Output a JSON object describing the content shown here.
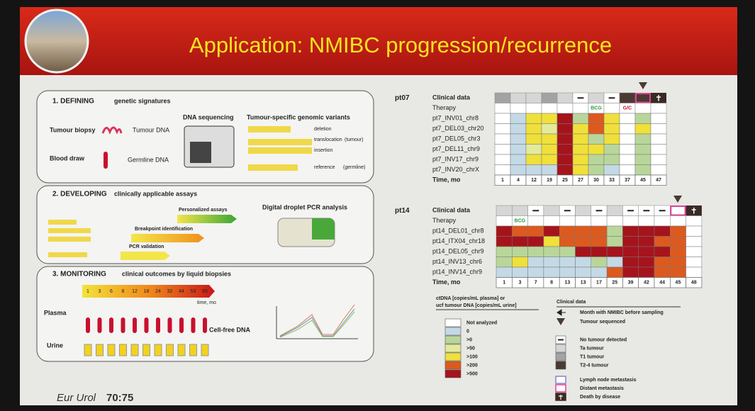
{
  "header": {
    "title": "Application: NMIBC progression/recurrence"
  },
  "citation": {
    "journal": "Eur Urol",
    "volume": "70:75"
  },
  "step1": {
    "heading": "1. DEFINING",
    "subheading": "genetic signatures",
    "tumour_biopsy": "Tumour biopsy",
    "tumour_dna": "Tumour DNA",
    "blood_draw": "Blood draw",
    "germline_dna": "Germline DNA",
    "sequencing": "DNA sequencing",
    "variants": "Tumour-specific genomic variants",
    "variant_types": [
      "deletion",
      "translocation",
      "insertion",
      "reference"
    ],
    "tumour": "(tumour)",
    "germline": "(germline)"
  },
  "step2": {
    "heading": "2. DEVELOPING",
    "subheading": "clinically applicable assays",
    "personalized": "Personalized assays",
    "breakpoint": "Breakpoint identification",
    "pcr": "PCR validation",
    "ddpcr": "Digital droplet PCR analysis"
  },
  "step3": {
    "heading": "3. MONITORING",
    "subheading": "clinical outcomes by liquid biopsies",
    "timeline": [
      1,
      3,
      6,
      8,
      12,
      18,
      24,
      32,
      44,
      53,
      65
    ],
    "time_label": "time, mo",
    "plasma": "Plasma",
    "urine": "Urine",
    "cfdna": "Cell-free DNA"
  },
  "pt07": {
    "patient": "pt07",
    "clinical_label": "Clinical data",
    "therapy_label": "Therapy",
    "time_label": "Time, mo",
    "times": [
      1,
      4,
      12,
      19,
      25,
      27,
      30,
      33,
      37,
      45,
      47
    ],
    "clinical": [
      "T1 tumour",
      "Ta tumour",
      "Ta tumour",
      "T1 tumour",
      "Ta tumour",
      "No tumour detected",
      "Ta tumour",
      "No tumour detected",
      "T2-4 tumour",
      "Distant metastasis",
      "Death by disease"
    ],
    "therapy": [
      null,
      null,
      null,
      null,
      null,
      null,
      "BCG",
      null,
      "G/C",
      null,
      null
    ],
    "rows": [
      {
        "name": "pt7_INV01_chr8",
        "levels": [
          "Not analyzed",
          "0",
          ">100",
          ">100",
          ">500",
          ">0",
          ">200",
          ">100",
          "Not analyzed",
          ">0",
          "Not analyzed"
        ]
      },
      {
        "name": "pt7_DEL03_chr20",
        "levels": [
          "Not analyzed",
          "0",
          ">100",
          ">50",
          ">500",
          ">100",
          ">200",
          ">100",
          "Not analyzed",
          ">100",
          "Not analyzed"
        ]
      },
      {
        "name": "pt7_DEL05_chr3",
        "levels": [
          "Not analyzed",
          "0",
          ">100",
          ">100",
          ">500",
          ">100",
          ">0",
          ">100",
          "Not analyzed",
          ">0",
          "Not analyzed"
        ]
      },
      {
        "name": "pt7_DEL11_chr9",
        "levels": [
          "Not analyzed",
          "0",
          ">50",
          ">100",
          ">500",
          ">100",
          ">100",
          ">0",
          "Not analyzed",
          ">0",
          "Not analyzed"
        ]
      },
      {
        "name": "pt7_INV17_chr9",
        "levels": [
          "Not analyzed",
          "0",
          ">100",
          ">100",
          ">500",
          ">100",
          ">0",
          ">0",
          "Not analyzed",
          ">0",
          "Not analyzed"
        ]
      },
      {
        "name": "pt7_INV20_chrX",
        "levels": [
          "Not analyzed",
          "0",
          "0",
          "0",
          ">500",
          ">100",
          ">0",
          "0",
          "Not analyzed",
          ">0",
          "Not analyzed"
        ]
      }
    ]
  },
  "pt14": {
    "patient": "pt14",
    "clinical_label": "Clinical data",
    "therapy_label": "Therapy",
    "time_label": "Time, mo",
    "times": [
      1,
      3,
      7,
      8,
      13,
      13,
      17,
      25,
      39,
      42,
      44,
      45,
      48
    ],
    "clinical": [
      "Ta tumour",
      "Ta tumour",
      "No tumour detected",
      "Ta tumour",
      "No tumour detected",
      "Ta tumour",
      "No tumour detected",
      "Ta tumour",
      "No tumour detected",
      "No tumour detected",
      "No tumour detected",
      "Distant metastasis",
      "Death by disease"
    ],
    "therapy": [
      null,
      "BCG",
      null,
      null,
      null,
      null,
      null,
      null,
      null,
      null,
      null,
      null,
      null
    ],
    "rows": [
      {
        "name": "pt14_DEL01_chr8",
        "levels": [
          ">500",
          ">200",
          ">200",
          ">500",
          ">200",
          ">200",
          ">200",
          ">0",
          ">500",
          ">500",
          ">500",
          ">200",
          "Not analyzed"
        ]
      },
      {
        "name": "pt14_ITX04_chr18",
        "levels": [
          ">500",
          ">500",
          ">500",
          ">100",
          ">200",
          ">200",
          ">200",
          ">0",
          ">500",
          ">500",
          ">200",
          ">200",
          "Not analyzed"
        ]
      },
      {
        "name": "pt14_DEL05_chr9",
        "levels": [
          ">0",
          ">0",
          ">0",
          ">0",
          ">0",
          ">500",
          ">500",
          ">500",
          ">500",
          ">500",
          ">500",
          ">200",
          "Not analyzed"
        ]
      },
      {
        "name": "pt14_INV13_chr6",
        "levels": [
          ">0",
          ">100",
          "0",
          "0",
          "0",
          "0",
          ">0",
          "0",
          ">500",
          ">500",
          ">200",
          ">200",
          "Not analyzed"
        ]
      },
      {
        "name": "pt14_INV14_chr9",
        "levels": [
          "0",
          "0",
          "0",
          "0",
          "0",
          "0",
          "0",
          ">200",
          ">500",
          ">500",
          ">200",
          ">200",
          "Not analyzed"
        ]
      }
    ]
  },
  "legend": {
    "ctdna_title": "ctDNA [copies/mL plasma] or",
    "ctdna_title2": "ucf tumour DNA [copies/mL urine]",
    "levels": [
      {
        "label": "Not analyzed",
        "color": "#ffffff"
      },
      {
        "label": "0",
        "color": "#c4d9e6"
      },
      {
        "label": ">0",
        "color": "#b9d69a"
      },
      {
        "label": ">50",
        "color": "#e4ea9c"
      },
      {
        "label": ">100",
        "color": "#f0e03a"
      },
      {
        "label": ">200",
        "color": "#dd5a1e"
      },
      {
        "label": ">500",
        "color": "#a5141c"
      }
    ],
    "clinical_title": "Clinical data",
    "month_nmibc": "Month with NMIBC before sampling",
    "tumour_sequenced": "Tumour sequenced",
    "clinical": [
      {
        "label": "No tumour detected",
        "color": "#ffffff"
      },
      {
        "label": "Ta tumour",
        "color": "#d6d6d6"
      },
      {
        "label": "T1 tumour",
        "color": "#a3a3a3"
      },
      {
        "label": "T2-4 tumour",
        "color": "#4a3a32"
      }
    ],
    "lymph": {
      "label": "Lymph node metastasis",
      "color": "#8a7fd2"
    },
    "distant": {
      "label": "Distant metastasis",
      "color": "#e0409a"
    },
    "death": {
      "label": "Death by disease",
      "color": "#3a2a24"
    }
  }
}
